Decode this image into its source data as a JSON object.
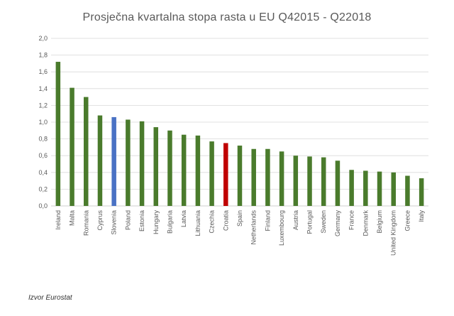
{
  "chart_data": {
    "type": "bar",
    "title": "Prosječna kvartalna stopa rasta u EU Q42015 - Q22018",
    "categories": [
      "Ireland",
      "Malta",
      "Romania",
      "Cyprus",
      "Slovenia",
      "Poland",
      "Estonia",
      "Hungary",
      "Bulgaria",
      "Latvia",
      "Lithuania",
      "Czechia",
      "Croatia",
      "Spain",
      "Netherlands",
      "Finland",
      "Luxembourg",
      "Austria",
      "Portugal",
      "Sweden",
      "Germany",
      "France",
      "Denmark",
      "Belgium",
      "United Kingdom",
      "Greece",
      "Italy"
    ],
    "values": [
      1.72,
      1.41,
      1.3,
      1.08,
      1.06,
      1.03,
      1.01,
      0.94,
      0.9,
      0.85,
      0.84,
      0.77,
      0.75,
      0.72,
      0.68,
      0.68,
      0.65,
      0.6,
      0.59,
      0.58,
      0.54,
      0.43,
      0.42,
      0.41,
      0.4,
      0.36,
      0.33
    ],
    "yticks": [
      "0,0",
      "0,2",
      "0,4",
      "0,6",
      "0,8",
      "1,0",
      "1,2",
      "1,4",
      "1,6",
      "1,8",
      "2,0"
    ],
    "ylim": [
      0,
      2.0
    ],
    "grid": true,
    "colors": {
      "default": "#4a7b2c",
      "highlight_slovenia": "#4a72c4",
      "highlight_croatia": "#c00000",
      "grid": "#d9d9d9"
    },
    "highlights": {
      "Slovenia": "#4a72c4",
      "Croatia": "#c00000"
    }
  },
  "source": "Izvor Eurostat"
}
